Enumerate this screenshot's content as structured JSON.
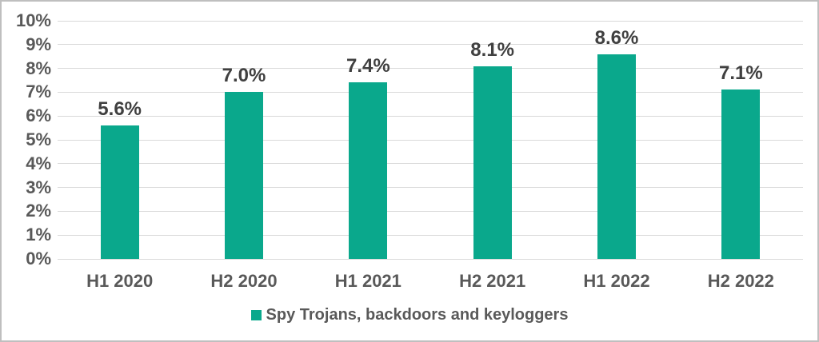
{
  "chart_data": {
    "type": "bar",
    "title": "",
    "xlabel": "",
    "ylabel": "",
    "categories": [
      "H1 2020",
      "H2 2020",
      "H1 2021",
      "H2 2021",
      "H1 2022",
      "H2 2022"
    ],
    "series": [
      {
        "name": "Spy Trojans, backdoors and keyloggers",
        "values": [
          5.6,
          7.0,
          7.4,
          8.1,
          8.6,
          7.1
        ]
      }
    ],
    "data_labels": [
      "5.6%",
      "7.0%",
      "7.4%",
      "8.1%",
      "8.6%",
      "7.1%"
    ],
    "y_tick_labels": [
      "0%",
      "1%",
      "2%",
      "3%",
      "4%",
      "5%",
      "6%",
      "7%",
      "8%",
      "9%",
      "10%"
    ],
    "ylim": [
      0,
      10
    ],
    "grid": true,
    "legend_position": "bottom",
    "colors": {
      "bar": "#0AA88C",
      "gridline": "#D9D9D9",
      "axis_label": "#595959",
      "data_label": "#404040",
      "legend_text": "#595959",
      "border": "#BFBFBF",
      "background": "#FFFFFF"
    }
  }
}
